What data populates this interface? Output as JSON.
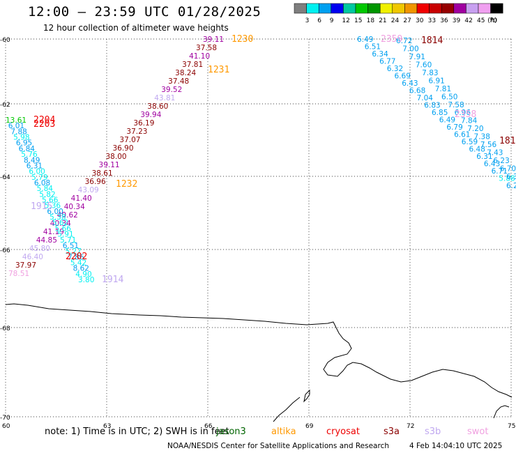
{
  "title": "12:00 – 23:59 UTC 01/28/2025",
  "subtitle": "12 hour collection of altimeter wave heights",
  "color_scale": {
    "unit": "(ft)",
    "labels": [
      "3",
      "6",
      "9",
      "12",
      "15",
      "18",
      "21",
      "24",
      "27",
      "30",
      "33",
      "36",
      "39",
      "42",
      "45",
      "70"
    ],
    "colors": [
      "#7f7f7f",
      "#00f0f0",
      "#00a0f0",
      "#0000f0",
      "#00c8a0",
      "#00c800",
      "#009600",
      "#f0f000",
      "#f0c800",
      "#f09600",
      "#f00000",
      "#c80000",
      "#960000",
      "#a000a0",
      "#c8a0f0",
      "#f0a0f0",
      "#000000"
    ]
  },
  "axes": {
    "lat_labels": [
      "-60",
      "-62",
      "-64",
      "-66",
      "-68",
      "-70"
    ],
    "lon_labels": [
      "60",
      "63",
      "66",
      "69",
      "72",
      "75"
    ]
  },
  "satellites": [
    {
      "name": "jason3",
      "color": "#006400"
    },
    {
      "name": "altika",
      "color": "#ff9900"
    },
    {
      "name": "cryosat",
      "color": "#ee0000"
    },
    {
      "name": "s3a",
      "color": "#8b0000"
    },
    {
      "name": "s3b",
      "color": "#c0a8f0"
    },
    {
      "name": "swot",
      "color": "#f0a0e0"
    }
  ],
  "note": "note: 1) Time is in UTC; 2) SWH is in feet",
  "credit": "NOAA/NESDIS Center for Satellite Applications and Research",
  "generated": "4 Feb 14:04:10 UTC 2025",
  "time_labels": [
    {
      "text": "1230",
      "color": "#ff9900"
    },
    {
      "text": "1231",
      "color": "#ff9900"
    },
    {
      "text": "1232",
      "color": "#ff9900"
    },
    {
      "text": "1814",
      "color": "#8b0000"
    },
    {
      "text": "181",
      "color": "#8b0000"
    },
    {
      "text": "2359",
      "color": "#f0a0e0"
    },
    {
      "text": "2358",
      "color": "#f0a0e0"
    },
    {
      "text": "2204",
      "color": "#ee0000"
    },
    {
      "text": "2203",
      "color": "#ee0000"
    },
    {
      "text": "2202",
      "color": "#ee0000"
    },
    {
      "text": "1915",
      "color": "#c0a8f0"
    },
    {
      "text": "1914",
      "color": "#c0a8f0"
    }
  ],
  "track_altika": [
    {
      "v": "39.11",
      "color": "#a000a0"
    },
    {
      "v": "37.58",
      "color": "#8b0000"
    },
    {
      "v": "41.10",
      "color": "#a000a0"
    },
    {
      "v": "37.81",
      "color": "#8b0000"
    },
    {
      "v": "38.24",
      "color": "#8b0000"
    },
    {
      "v": "37.48",
      "color": "#8b0000"
    },
    {
      "v": "39.52",
      "color": "#a000a0"
    },
    {
      "v": "43.81",
      "color": "#c0a8f0"
    },
    {
      "v": "38.60",
      "color": "#8b0000"
    },
    {
      "v": "39.94",
      "color": "#a000a0"
    },
    {
      "v": "36.19",
      "color": "#8b0000"
    },
    {
      "v": "37.23",
      "color": "#8b0000"
    },
    {
      "v": "37.07",
      "color": "#8b0000"
    },
    {
      "v": "36.90",
      "color": "#8b0000"
    },
    {
      "v": "38.00",
      "color": "#8b0000"
    },
    {
      "v": "39.11",
      "color": "#a000a0"
    },
    {
      "v": "38.61",
      "color": "#8b0000"
    },
    {
      "v": "36.96",
      "color": "#8b0000"
    },
    {
      "v": "43.09",
      "color": "#c0a8f0"
    },
    {
      "v": "41.40",
      "color": "#a000a0"
    },
    {
      "v": "40.34",
      "color": "#a000a0"
    },
    {
      "v": "40.62",
      "color": "#a000a0"
    },
    {
      "v": "40.34",
      "color": "#a000a0"
    },
    {
      "v": "41.19",
      "color": "#a000a0"
    },
    {
      "v": "44.85",
      "color": "#a000a0"
    },
    {
      "v": "45.80",
      "color": "#c0a8f0"
    },
    {
      "v": "46.40",
      "color": "#c0a8f0"
    },
    {
      "v": "37.97",
      "color": "#8b0000"
    },
    {
      "v": "78.51",
      "color": "#f0a0e0"
    }
  ],
  "track_left": [
    {
      "v": "13.61",
      "color": "#00c800"
    },
    {
      "v": "6.01",
      "color": "#00a0f0"
    },
    {
      "v": "7.88",
      "color": "#00a0f0"
    },
    {
      "v": "5.98",
      "color": "#00f0f0"
    },
    {
      "v": "6.95",
      "color": "#00a0f0"
    },
    {
      "v": "6.84",
      "color": "#00a0f0"
    },
    {
      "v": "5.76",
      "color": "#00f0f0"
    },
    {
      "v": "8.49",
      "color": "#00a0f0"
    },
    {
      "v": "6.31",
      "color": "#00a0f0"
    },
    {
      "v": "6.00",
      "color": "#00f0f0"
    },
    {
      "v": "5.79",
      "color": "#00f0f0"
    },
    {
      "v": "6.08",
      "color": "#00a0f0"
    },
    {
      "v": "5.84",
      "color": "#00f0f0"
    },
    {
      "v": "5.82",
      "color": "#00f0f0"
    },
    {
      "v": "5.66",
      "color": "#00f0f0"
    },
    {
      "v": "5.36",
      "color": "#00f0f0"
    },
    {
      "v": "6.00",
      "color": "#00a0f0"
    },
    {
      "v": "5.38",
      "color": "#00f0f0"
    },
    {
      "v": "5.62",
      "color": "#00f0f0"
    },
    {
      "v": "5.66",
      "color": "#00f0f0"
    },
    {
      "v": "5.91",
      "color": "#00f0f0"
    },
    {
      "v": "5.71",
      "color": "#00f0f0"
    },
    {
      "v": "6.51",
      "color": "#00a0f0"
    },
    {
      "v": "5.27",
      "color": "#00f0f0"
    },
    {
      "v": "7.86",
      "color": "#00a0f0"
    },
    {
      "v": "5.42",
      "color": "#00f0f0"
    },
    {
      "v": "8.62",
      "color": "#00a0f0"
    },
    {
      "v": "4.90",
      "color": "#00f0f0"
    },
    {
      "v": "3.80",
      "color": "#00f0f0"
    }
  ],
  "track_right_a": [
    {
      "v": "6.49",
      "color": "#00a0f0"
    },
    {
      "v": "6.51",
      "color": "#00a0f0"
    },
    {
      "v": "6.34",
      "color": "#00a0f0"
    },
    {
      "v": "6.77",
      "color": "#00a0f0"
    },
    {
      "v": "6.32",
      "color": "#00a0f0"
    },
    {
      "v": "6.69",
      "color": "#00a0f0"
    },
    {
      "v": "6.43",
      "color": "#00a0f0"
    },
    {
      "v": "6.68",
      "color": "#00a0f0"
    },
    {
      "v": "7.04",
      "color": "#00a0f0"
    },
    {
      "v": "6.83",
      "color": "#00a0f0"
    },
    {
      "v": "6.85",
      "color": "#00a0f0"
    },
    {
      "v": "6.49",
      "color": "#00a0f0"
    },
    {
      "v": "6.79",
      "color": "#00a0f0"
    },
    {
      "v": "6.61",
      "color": "#00a0f0"
    },
    {
      "v": "6.59",
      "color": "#00a0f0"
    },
    {
      "v": "6.48",
      "color": "#00a0f0"
    },
    {
      "v": "6.31",
      "color": "#00a0f0"
    },
    {
      "v": "6.43",
      "color": "#00a0f0"
    },
    {
      "v": "6.71",
      "color": "#00a0f0"
    },
    {
      "v": "5.88",
      "color": "#00f0f0"
    },
    {
      "v": "6.2",
      "color": "#00a0f0"
    }
  ],
  "track_right_b": [
    {
      "v": "6.72",
      "color": "#00a0f0"
    },
    {
      "v": "7.00",
      "color": "#00a0f0"
    },
    {
      "v": "7.91",
      "color": "#00a0f0"
    },
    {
      "v": "7.60",
      "color": "#00a0f0"
    },
    {
      "v": "7.83",
      "color": "#00a0f0"
    },
    {
      "v": "6.91",
      "color": "#00a0f0"
    },
    {
      "v": "7.81",
      "color": "#00a0f0"
    },
    {
      "v": "6.50",
      "color": "#00a0f0"
    },
    {
      "v": "7.58",
      "color": "#00a0f0"
    },
    {
      "v": "6.96",
      "color": "#00a0f0"
    },
    {
      "v": "7.84",
      "color": "#00a0f0"
    },
    {
      "v": "7.20",
      "color": "#00a0f0"
    },
    {
      "v": "7.38",
      "color": "#00a0f0"
    },
    {
      "v": "7.56",
      "color": "#00a0f0"
    },
    {
      "v": "7.43",
      "color": "#00a0f0"
    },
    {
      "v": "6.23",
      "color": "#00a0f0"
    },
    {
      "v": "6.70",
      "color": "#00a0f0"
    },
    {
      "v": "6.3",
      "color": "#00a0f0"
    }
  ]
}
